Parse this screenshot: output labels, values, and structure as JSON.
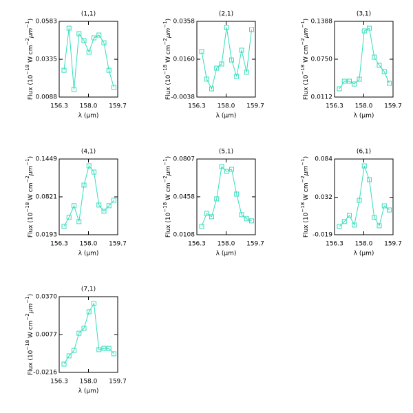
{
  "chart_data": [
    {
      "type": "line",
      "title": "(1,1)",
      "color": "#33ddbb",
      "x": [
        156.58,
        156.87,
        157.16,
        157.45,
        157.74,
        158.03,
        158.32,
        158.61,
        158.9,
        159.19,
        159.48
      ],
      "values": [
        0.0263,
        0.0538,
        0.0138,
        0.0502,
        0.0457,
        0.0381,
        0.0475,
        0.0493,
        0.0443,
        0.0263,
        0.0151
      ],
      "xlim": [
        156.3,
        159.7
      ],
      "xticks": [
        156.3,
        {
          "value": 158,
          "label": "158.0"
        },
        159.7
      ],
      "ylim": [
        0.0088,
        0.0583
      ],
      "yticks": [
        0.0088,
        0.0335,
        0.0583
      ],
      "xlabel": "λ (μm)",
      "ylabel": [
        "Flux (10",
        "−18",
        " W cm",
        "−2",
        "μm",
        "−1",
        ")"
      ]
    },
    {
      "type": "line",
      "title": "(2,1)",
      "color": "#33ddbb",
      "x": [
        156.58,
        156.87,
        157.16,
        157.45,
        157.74,
        158.03,
        158.32,
        158.61,
        158.9,
        159.19,
        159.48
      ],
      "values": [
        0.02,
        0.0056,
        0.0005,
        0.0113,
        0.0135,
        0.0326,
        0.0156,
        0.007,
        0.0207,
        0.0092,
        0.0315
      ],
      "xlim": [
        156.3,
        159.7
      ],
      "xticks": [
        156.3,
        {
          "value": 158,
          "label": "158.0"
        },
        159.7
      ],
      "ylim": [
        -0.0038,
        0.0358
      ],
      "yticks": [
        -0.0038,
        {
          "value": 0.016,
          "label": "0.0160"
        },
        0.0358
      ],
      "xlabel": "λ (μm)",
      "ylabel": [
        "Flux (10",
        "−18",
        " W cm",
        "−2",
        "μm",
        "−1",
        ")"
      ]
    },
    {
      "type": "line",
      "title": "(3,1)",
      "color": "#33ddbb",
      "x": [
        156.58,
        156.87,
        157.16,
        157.45,
        157.74,
        158.03,
        158.32,
        158.61,
        158.9,
        159.19,
        159.48
      ],
      "values": [
        0.0251,
        0.0379,
        0.0379,
        0.0332,
        0.0413,
        0.1226,
        0.1272,
        0.0785,
        0.0646,
        0.0541,
        0.0344
      ],
      "xlim": [
        156.3,
        159.7
      ],
      "xticks": [
        156.3,
        {
          "value": 158,
          "label": "158.0"
        },
        159.7
      ],
      "ylim": [
        0.0112,
        0.1388
      ],
      "yticks": [
        0.0112,
        {
          "value": 0.075,
          "label": "0.0750"
        },
        0.1388
      ],
      "xlabel": "λ (μm)",
      "ylabel": [
        "Flux (10",
        "−18",
        " W cm",
        "−2",
        "μm",
        "−1",
        ")"
      ]
    },
    {
      "type": "line",
      "title": "(4,1)",
      "color": "#33ddbb",
      "x": [
        156.58,
        156.87,
        157.16,
        157.45,
        157.74,
        158.03,
        158.32,
        158.61,
        158.9,
        159.19,
        159.48
      ],
      "values": [
        0.0332,
        0.048,
        0.0674,
        0.0411,
        0.1016,
        0.1335,
        0.1232,
        0.0685,
        0.0583,
        0.0674,
        0.0765
      ],
      "xlim": [
        156.3,
        159.7
      ],
      "xticks": [
        156.3,
        {
          "value": 158,
          "label": "158.0"
        },
        159.7
      ],
      "ylim": [
        0.0193,
        0.1449
      ],
      "yticks": [
        0.0193,
        0.0821,
        0.1449
      ],
      "xlabel": "λ (μm)",
      "ylabel": [
        "Flux (10",
        "−18",
        " W cm",
        "−2",
        "μm",
        "−1",
        ")"
      ]
    },
    {
      "type": "line",
      "title": "(5,1)",
      "color": "#33ddbb",
      "x": [
        156.58,
        156.87,
        157.16,
        157.45,
        157.74,
        158.03,
        158.32,
        158.61,
        158.9,
        159.19,
        159.48
      ],
      "values": [
        0.0185,
        0.0305,
        0.0274,
        0.0439,
        0.0737,
        0.0693,
        0.0712,
        0.0483,
        0.0293,
        0.0255,
        0.0236
      ],
      "xlim": [
        156.3,
        159.7
      ],
      "xticks": [
        156.3,
        {
          "value": 158,
          "label": "158.0"
        },
        159.7
      ],
      "ylim": [
        0.0108,
        0.0807
      ],
      "yticks": [
        0.0108,
        0.0458,
        0.0807
      ],
      "xlabel": "λ (μm)",
      "ylabel": [
        "Flux (10",
        "−18",
        " W cm",
        "−2",
        "μm",
        "−1",
        ")"
      ]
    },
    {
      "type": "line",
      "title": "(6,1)",
      "color": "#33ddbb",
      "x": [
        156.58,
        156.87,
        157.16,
        157.45,
        157.74,
        158.03,
        158.32,
        158.61,
        158.9,
        159.19,
        159.48
      ],
      "values": [
        -0.0077,
        -0.0011,
        0.0073,
        -0.0058,
        0.0278,
        0.0746,
        0.0559,
        0.0045,
        -0.0068,
        0.0203,
        0.0147
      ],
      "xlim": [
        156.3,
        159.7
      ],
      "xticks": [
        156.3,
        {
          "value": 158,
          "label": "158.0"
        },
        159.7
      ],
      "ylim": [
        -0.019,
        0.084
      ],
      "yticks": [
        -0.019,
        0.032,
        0.084
      ],
      "xlabel": "λ (μm)",
      "ylabel": [
        "Flux (10",
        "−18",
        " W cm",
        "−2",
        "μm",
        "−1",
        ")"
      ]
    },
    {
      "type": "line",
      "title": "(7,1)",
      "color": "#33ddbb",
      "x": [
        156.58,
        156.87,
        157.16,
        157.45,
        157.74,
        158.03,
        158.32,
        158.61,
        158.9,
        159.19,
        159.48
      ],
      "values": [
        -0.0152,
        -0.0088,
        -0.0046,
        0.0087,
        0.0125,
        0.0253,
        0.0317,
        -0.004,
        -0.003,
        -0.003,
        -0.0072
      ],
      "xlim": [
        156.3,
        159.7
      ],
      "xticks": [
        156.3,
        {
          "value": 158,
          "label": "158.0"
        },
        159.7
      ],
      "ylim": [
        -0.0216,
        0.037
      ],
      "yticks": [
        -0.0216,
        0.0077,
        {
          "value": 0.037,
          "label": "0.0370"
        }
      ],
      "xlabel": "λ (μm)",
      "ylabel": [
        "Flux (10",
        "−18",
        " W cm",
        "−2",
        "μm",
        "−1",
        ")"
      ]
    }
  ]
}
